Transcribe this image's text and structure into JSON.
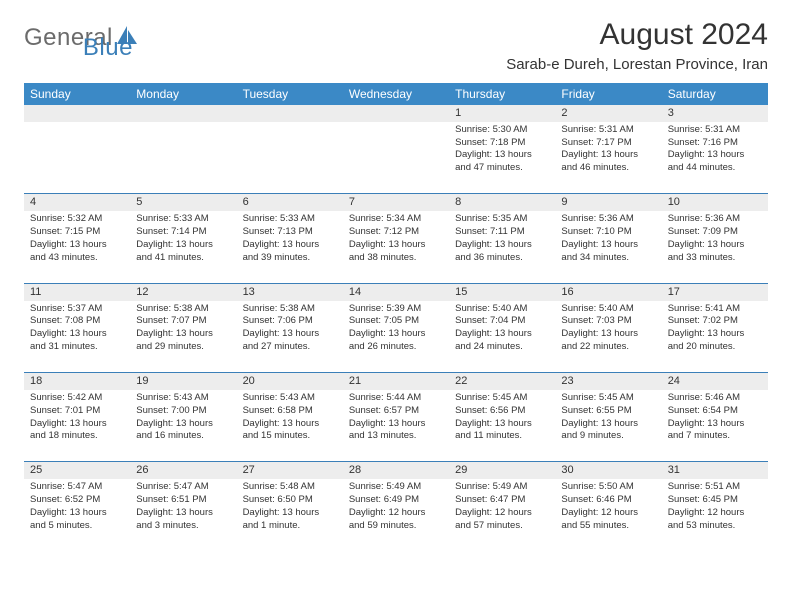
{
  "logo": {
    "text1": "General",
    "text2": "Blue"
  },
  "title": "August 2024",
  "location": "Sarab-e Dureh, Lorestan Province, Iran",
  "header_bg": "#3b89c6",
  "header_fg": "#ffffff",
  "daynum_bg": "#ededed",
  "rule_color": "#3b7fb8",
  "weekdays": [
    "Sunday",
    "Monday",
    "Tuesday",
    "Wednesday",
    "Thursday",
    "Friday",
    "Saturday"
  ],
  "weeks": [
    [
      {
        "n": "",
        "sr": "",
        "ss": "",
        "dl": ""
      },
      {
        "n": "",
        "sr": "",
        "ss": "",
        "dl": ""
      },
      {
        "n": "",
        "sr": "",
        "ss": "",
        "dl": ""
      },
      {
        "n": "",
        "sr": "",
        "ss": "",
        "dl": ""
      },
      {
        "n": "1",
        "sr": "Sunrise: 5:30 AM",
        "ss": "Sunset: 7:18 PM",
        "dl": "Daylight: 13 hours and 47 minutes."
      },
      {
        "n": "2",
        "sr": "Sunrise: 5:31 AM",
        "ss": "Sunset: 7:17 PM",
        "dl": "Daylight: 13 hours and 46 minutes."
      },
      {
        "n": "3",
        "sr": "Sunrise: 5:31 AM",
        "ss": "Sunset: 7:16 PM",
        "dl": "Daylight: 13 hours and 44 minutes."
      }
    ],
    [
      {
        "n": "4",
        "sr": "Sunrise: 5:32 AM",
        "ss": "Sunset: 7:15 PM",
        "dl": "Daylight: 13 hours and 43 minutes."
      },
      {
        "n": "5",
        "sr": "Sunrise: 5:33 AM",
        "ss": "Sunset: 7:14 PM",
        "dl": "Daylight: 13 hours and 41 minutes."
      },
      {
        "n": "6",
        "sr": "Sunrise: 5:33 AM",
        "ss": "Sunset: 7:13 PM",
        "dl": "Daylight: 13 hours and 39 minutes."
      },
      {
        "n": "7",
        "sr": "Sunrise: 5:34 AM",
        "ss": "Sunset: 7:12 PM",
        "dl": "Daylight: 13 hours and 38 minutes."
      },
      {
        "n": "8",
        "sr": "Sunrise: 5:35 AM",
        "ss": "Sunset: 7:11 PM",
        "dl": "Daylight: 13 hours and 36 minutes."
      },
      {
        "n": "9",
        "sr": "Sunrise: 5:36 AM",
        "ss": "Sunset: 7:10 PM",
        "dl": "Daylight: 13 hours and 34 minutes."
      },
      {
        "n": "10",
        "sr": "Sunrise: 5:36 AM",
        "ss": "Sunset: 7:09 PM",
        "dl": "Daylight: 13 hours and 33 minutes."
      }
    ],
    [
      {
        "n": "11",
        "sr": "Sunrise: 5:37 AM",
        "ss": "Sunset: 7:08 PM",
        "dl": "Daylight: 13 hours and 31 minutes."
      },
      {
        "n": "12",
        "sr": "Sunrise: 5:38 AM",
        "ss": "Sunset: 7:07 PM",
        "dl": "Daylight: 13 hours and 29 minutes."
      },
      {
        "n": "13",
        "sr": "Sunrise: 5:38 AM",
        "ss": "Sunset: 7:06 PM",
        "dl": "Daylight: 13 hours and 27 minutes."
      },
      {
        "n": "14",
        "sr": "Sunrise: 5:39 AM",
        "ss": "Sunset: 7:05 PM",
        "dl": "Daylight: 13 hours and 26 minutes."
      },
      {
        "n": "15",
        "sr": "Sunrise: 5:40 AM",
        "ss": "Sunset: 7:04 PM",
        "dl": "Daylight: 13 hours and 24 minutes."
      },
      {
        "n": "16",
        "sr": "Sunrise: 5:40 AM",
        "ss": "Sunset: 7:03 PM",
        "dl": "Daylight: 13 hours and 22 minutes."
      },
      {
        "n": "17",
        "sr": "Sunrise: 5:41 AM",
        "ss": "Sunset: 7:02 PM",
        "dl": "Daylight: 13 hours and 20 minutes."
      }
    ],
    [
      {
        "n": "18",
        "sr": "Sunrise: 5:42 AM",
        "ss": "Sunset: 7:01 PM",
        "dl": "Daylight: 13 hours and 18 minutes."
      },
      {
        "n": "19",
        "sr": "Sunrise: 5:43 AM",
        "ss": "Sunset: 7:00 PM",
        "dl": "Daylight: 13 hours and 16 minutes."
      },
      {
        "n": "20",
        "sr": "Sunrise: 5:43 AM",
        "ss": "Sunset: 6:58 PM",
        "dl": "Daylight: 13 hours and 15 minutes."
      },
      {
        "n": "21",
        "sr": "Sunrise: 5:44 AM",
        "ss": "Sunset: 6:57 PM",
        "dl": "Daylight: 13 hours and 13 minutes."
      },
      {
        "n": "22",
        "sr": "Sunrise: 5:45 AM",
        "ss": "Sunset: 6:56 PM",
        "dl": "Daylight: 13 hours and 11 minutes."
      },
      {
        "n": "23",
        "sr": "Sunrise: 5:45 AM",
        "ss": "Sunset: 6:55 PM",
        "dl": "Daylight: 13 hours and 9 minutes."
      },
      {
        "n": "24",
        "sr": "Sunrise: 5:46 AM",
        "ss": "Sunset: 6:54 PM",
        "dl": "Daylight: 13 hours and 7 minutes."
      }
    ],
    [
      {
        "n": "25",
        "sr": "Sunrise: 5:47 AM",
        "ss": "Sunset: 6:52 PM",
        "dl": "Daylight: 13 hours and 5 minutes."
      },
      {
        "n": "26",
        "sr": "Sunrise: 5:47 AM",
        "ss": "Sunset: 6:51 PM",
        "dl": "Daylight: 13 hours and 3 minutes."
      },
      {
        "n": "27",
        "sr": "Sunrise: 5:48 AM",
        "ss": "Sunset: 6:50 PM",
        "dl": "Daylight: 13 hours and 1 minute."
      },
      {
        "n": "28",
        "sr": "Sunrise: 5:49 AM",
        "ss": "Sunset: 6:49 PM",
        "dl": "Daylight: 12 hours and 59 minutes."
      },
      {
        "n": "29",
        "sr": "Sunrise: 5:49 AM",
        "ss": "Sunset: 6:47 PM",
        "dl": "Daylight: 12 hours and 57 minutes."
      },
      {
        "n": "30",
        "sr": "Sunrise: 5:50 AM",
        "ss": "Sunset: 6:46 PM",
        "dl": "Daylight: 12 hours and 55 minutes."
      },
      {
        "n": "31",
        "sr": "Sunrise: 5:51 AM",
        "ss": "Sunset: 6:45 PM",
        "dl": "Daylight: 12 hours and 53 minutes."
      }
    ]
  ]
}
